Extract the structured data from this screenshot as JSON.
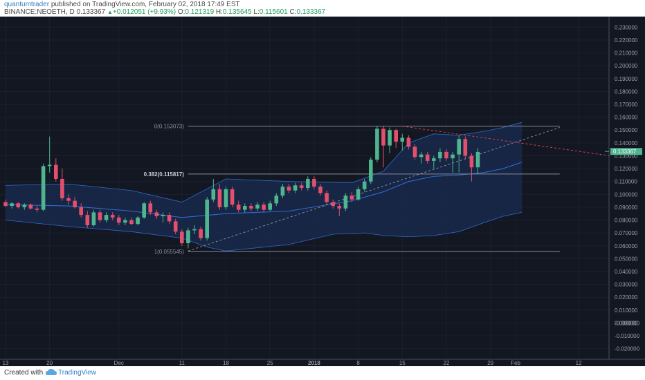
{
  "header": {
    "author": "quantumtrader",
    "published_text": "published on TradingView.com, February 02, 2018 17:49 EST",
    "symbol": "BINANCE:NEOETH, D",
    "last_price": "0.133367",
    "change_arrow": "▲",
    "change": "+0.012051 (+9.93%)",
    "o_label": "O:",
    "o_value": "0.121319",
    "h_label": "H:",
    "h_value": "0.135645",
    "l_label": "L:",
    "l_value": "0.115601",
    "c_label": "C:",
    "c_value": "0.133367"
  },
  "footer": {
    "created": "Created with",
    "brand": "TradingView"
  },
  "colors": {
    "background": "#131722",
    "up": "#4fb58f",
    "down": "#e2506e",
    "band": "#2f6ad0",
    "band_fill": "#1a2c50",
    "fib": "#8a8f99",
    "trend": "#e23d4b",
    "price_label": "#4fb58f",
    "axis_text": "#9ba0aa"
  },
  "chart_data": {
    "type": "candlestick",
    "title": "BINANCE:NEOETH, D",
    "xlabel": "",
    "ylabel": "",
    "ylim": [
      -0.025,
      0.235
    ],
    "grid": true,
    "y_ticks": [
      "0.230000",
      "0.220000",
      "0.210000",
      "0.200000",
      "0.190000",
      "0.180000",
      "0.170000",
      "0.160000",
      "0.150000",
      "0.140000",
      "0.130000",
      "0.120000",
      "0.110000",
      "0.100000",
      "0.090000",
      "0.080000",
      "0.070000",
      "0.060000",
      "0.050000",
      "0.040000",
      "0.030000",
      "0.020000",
      "0.010000",
      "0.000000",
      "-0.000000",
      "-0.010000",
      "-0.020000"
    ],
    "x_ticks": [
      {
        "label": "13",
        "i": 0
      },
      {
        "label": "20",
        "i": 7
      },
      {
        "label": "Dec",
        "i": 18
      },
      {
        "label": "11",
        "i": 28
      },
      {
        "label": "18",
        "i": 35
      },
      {
        "label": "25",
        "i": 42
      },
      {
        "label": "2018",
        "i": 49
      },
      {
        "label": "8",
        "i": 56
      },
      {
        "label": "15",
        "i": 63
      },
      {
        "label": "22",
        "i": 70
      },
      {
        "label": "29",
        "i": 77
      },
      {
        "label": "Feb",
        "i": 81
      },
      {
        "label": "12",
        "i": 91
      }
    ],
    "candles": [
      {
        "o": 0.094,
        "h": 0.096,
        "l": 0.09,
        "c": 0.091
      },
      {
        "o": 0.091,
        "h": 0.094,
        "l": 0.089,
        "c": 0.093
      },
      {
        "o": 0.093,
        "h": 0.094,
        "l": 0.089,
        "c": 0.09
      },
      {
        "o": 0.09,
        "h": 0.093,
        "l": 0.088,
        "c": 0.092
      },
      {
        "o": 0.092,
        "h": 0.093,
        "l": 0.088,
        "c": 0.089
      },
      {
        "o": 0.089,
        "h": 0.091,
        "l": 0.086,
        "c": 0.088
      },
      {
        "o": 0.088,
        "h": 0.124,
        "l": 0.087,
        "c": 0.122
      },
      {
        "o": 0.122,
        "h": 0.145,
        "l": 0.117,
        "c": 0.123
      },
      {
        "o": 0.123,
        "h": 0.128,
        "l": 0.11,
        "c": 0.112
      },
      {
        "o": 0.112,
        "h": 0.12,
        "l": 0.095,
        "c": 0.097
      },
      {
        "o": 0.097,
        "h": 0.1,
        "l": 0.092,
        "c": 0.095
      },
      {
        "o": 0.095,
        "h": 0.098,
        "l": 0.089,
        "c": 0.09
      },
      {
        "o": 0.09,
        "h": 0.093,
        "l": 0.082,
        "c": 0.084
      },
      {
        "o": 0.084,
        "h": 0.087,
        "l": 0.074,
        "c": 0.076
      },
      {
        "o": 0.076,
        "h": 0.088,
        "l": 0.075,
        "c": 0.086
      },
      {
        "o": 0.086,
        "h": 0.088,
        "l": 0.078,
        "c": 0.08
      },
      {
        "o": 0.08,
        "h": 0.086,
        "l": 0.078,
        "c": 0.084
      },
      {
        "o": 0.084,
        "h": 0.086,
        "l": 0.08,
        "c": 0.082
      },
      {
        "o": 0.082,
        "h": 0.084,
        "l": 0.076,
        "c": 0.078
      },
      {
        "o": 0.078,
        "h": 0.082,
        "l": 0.076,
        "c": 0.08
      },
      {
        "o": 0.08,
        "h": 0.082,
        "l": 0.076,
        "c": 0.077
      },
      {
        "o": 0.077,
        "h": 0.083,
        "l": 0.076,
        "c": 0.082
      },
      {
        "o": 0.082,
        "h": 0.094,
        "l": 0.081,
        "c": 0.093
      },
      {
        "o": 0.093,
        "h": 0.095,
        "l": 0.084,
        "c": 0.086
      },
      {
        "o": 0.086,
        "h": 0.088,
        "l": 0.081,
        "c": 0.083
      },
      {
        "o": 0.083,
        "h": 0.086,
        "l": 0.078,
        "c": 0.084
      },
      {
        "o": 0.084,
        "h": 0.086,
        "l": 0.077,
        "c": 0.079
      },
      {
        "o": 0.079,
        "h": 0.081,
        "l": 0.069,
        "c": 0.071
      },
      {
        "o": 0.071,
        "h": 0.073,
        "l": 0.06,
        "c": 0.062
      },
      {
        "o": 0.062,
        "h": 0.074,
        "l": 0.058,
        "c": 0.072
      },
      {
        "o": 0.072,
        "h": 0.076,
        "l": 0.069,
        "c": 0.073
      },
      {
        "o": 0.073,
        "h": 0.075,
        "l": 0.064,
        "c": 0.066
      },
      {
        "o": 0.066,
        "h": 0.098,
        "l": 0.064,
        "c": 0.096
      },
      {
        "o": 0.096,
        "h": 0.112,
        "l": 0.094,
        "c": 0.104
      },
      {
        "o": 0.104,
        "h": 0.108,
        "l": 0.088,
        "c": 0.09
      },
      {
        "o": 0.09,
        "h": 0.106,
        "l": 0.088,
        "c": 0.104
      },
      {
        "o": 0.104,
        "h": 0.106,
        "l": 0.09,
        "c": 0.092
      },
      {
        "o": 0.092,
        "h": 0.095,
        "l": 0.086,
        "c": 0.088
      },
      {
        "o": 0.088,
        "h": 0.093,
        "l": 0.086,
        "c": 0.091
      },
      {
        "o": 0.091,
        "h": 0.093,
        "l": 0.087,
        "c": 0.089
      },
      {
        "o": 0.089,
        "h": 0.094,
        "l": 0.087,
        "c": 0.092
      },
      {
        "o": 0.092,
        "h": 0.094,
        "l": 0.086,
        "c": 0.088
      },
      {
        "o": 0.088,
        "h": 0.095,
        "l": 0.087,
        "c": 0.093
      },
      {
        "o": 0.093,
        "h": 0.101,
        "l": 0.091,
        "c": 0.099
      },
      {
        "o": 0.099,
        "h": 0.108,
        "l": 0.097,
        "c": 0.106
      },
      {
        "o": 0.106,
        "h": 0.108,
        "l": 0.101,
        "c": 0.103
      },
      {
        "o": 0.103,
        "h": 0.109,
        "l": 0.101,
        "c": 0.107
      },
      {
        "o": 0.107,
        "h": 0.109,
        "l": 0.103,
        "c": 0.105
      },
      {
        "o": 0.105,
        "h": 0.114,
        "l": 0.103,
        "c": 0.112
      },
      {
        "o": 0.112,
        "h": 0.114,
        "l": 0.104,
        "c": 0.106
      },
      {
        "o": 0.106,
        "h": 0.108,
        "l": 0.099,
        "c": 0.101
      },
      {
        "o": 0.101,
        "h": 0.103,
        "l": 0.092,
        "c": 0.094
      },
      {
        "o": 0.094,
        "h": 0.096,
        "l": 0.089,
        "c": 0.091
      },
      {
        "o": 0.091,
        "h": 0.093,
        "l": 0.083,
        "c": 0.089
      },
      {
        "o": 0.089,
        "h": 0.101,
        "l": 0.087,
        "c": 0.099
      },
      {
        "o": 0.099,
        "h": 0.102,
        "l": 0.094,
        "c": 0.096
      },
      {
        "o": 0.096,
        "h": 0.106,
        "l": 0.095,
        "c": 0.104
      },
      {
        "o": 0.104,
        "h": 0.112,
        "l": 0.102,
        "c": 0.11
      },
      {
        "o": 0.11,
        "h": 0.129,
        "l": 0.108,
        "c": 0.127
      },
      {
        "o": 0.127,
        "h": 0.153,
        "l": 0.125,
        "c": 0.151
      },
      {
        "o": 0.151,
        "h": 0.153,
        "l": 0.121,
        "c": 0.138
      },
      {
        "o": 0.138,
        "h": 0.152,
        "l": 0.132,
        "c": 0.15
      },
      {
        "o": 0.15,
        "h": 0.151,
        "l": 0.136,
        "c": 0.141
      },
      {
        "o": 0.141,
        "h": 0.147,
        "l": 0.134,
        "c": 0.144
      },
      {
        "o": 0.144,
        "h": 0.146,
        "l": 0.135,
        "c": 0.137
      },
      {
        "o": 0.137,
        "h": 0.139,
        "l": 0.127,
        "c": 0.129
      },
      {
        "o": 0.129,
        "h": 0.133,
        "l": 0.124,
        "c": 0.131
      },
      {
        "o": 0.131,
        "h": 0.133,
        "l": 0.124,
        "c": 0.126
      },
      {
        "o": 0.126,
        "h": 0.13,
        "l": 0.12,
        "c": 0.128
      },
      {
        "o": 0.128,
        "h": 0.136,
        "l": 0.125,
        "c": 0.133
      },
      {
        "o": 0.133,
        "h": 0.135,
        "l": 0.126,
        "c": 0.128
      },
      {
        "o": 0.128,
        "h": 0.133,
        "l": 0.117,
        "c": 0.131
      },
      {
        "o": 0.131,
        "h": 0.146,
        "l": 0.117,
        "c": 0.143
      },
      {
        "o": 0.143,
        "h": 0.145,
        "l": 0.128,
        "c": 0.13
      },
      {
        "o": 0.13,
        "h": 0.132,
        "l": 0.11,
        "c": 0.121
      },
      {
        "o": 0.121,
        "h": 0.136,
        "l": 0.116,
        "c": 0.133
      }
    ],
    "bands": {
      "upper": [
        [
          0,
          0.107
        ],
        [
          10,
          0.108
        ],
        [
          20,
          0.103
        ],
        [
          28,
          0.094
        ],
        [
          35,
          0.112
        ],
        [
          45,
          0.11
        ],
        [
          55,
          0.109
        ],
        [
          60,
          0.118
        ],
        [
          64,
          0.14
        ],
        [
          68,
          0.147
        ],
        [
          72,
          0.146
        ],
        [
          76,
          0.149
        ],
        [
          79,
          0.152
        ],
        [
          82,
          0.156
        ]
      ],
      "basis": [
        [
          0,
          0.092
        ],
        [
          10,
          0.091
        ],
        [
          20,
          0.087
        ],
        [
          28,
          0.082
        ],
        [
          35,
          0.085
        ],
        [
          45,
          0.087
        ],
        [
          55,
          0.095
        ],
        [
          60,
          0.102
        ],
        [
          64,
          0.11
        ],
        [
          68,
          0.114
        ],
        [
          72,
          0.115
        ],
        [
          76,
          0.117
        ],
        [
          79,
          0.12
        ],
        [
          82,
          0.125
        ]
      ],
      "lower": [
        [
          0,
          0.08
        ],
        [
          10,
          0.075
        ],
        [
          20,
          0.071
        ],
        [
          28,
          0.066
        ],
        [
          32,
          0.059
        ],
        [
          35,
          0.056
        ],
        [
          45,
          0.061
        ],
        [
          52,
          0.069
        ],
        [
          57,
          0.07
        ],
        [
          60,
          0.068
        ],
        [
          64,
          0.067
        ],
        [
          68,
          0.068
        ],
        [
          72,
          0.071
        ],
        [
          76,
          0.078
        ],
        [
          79,
          0.083
        ],
        [
          82,
          0.086
        ]
      ]
    },
    "fib_levels": [
      {
        "label": "0(0.153073)",
        "value": 0.153073
      },
      {
        "label": "0.382(0.115817)",
        "value": 0.115817
      },
      {
        "label": "1(0.055545)",
        "value": 0.055545
      }
    ],
    "fib_range": {
      "start": 29,
      "end": 88
    },
    "trendlines": [
      {
        "style": "dashed",
        "color": "#8a8f99",
        "from": [
          29,
          0.056
        ],
        "to": [
          88,
          0.152
        ]
      },
      {
        "style": "dashed",
        "color": "#e23d4b",
        "from": [
          63,
          0.153
        ],
        "to": [
          96,
          0.13
        ]
      }
    ],
    "current_price": {
      "value": 0.133367,
      "label": "0.133367"
    }
  }
}
